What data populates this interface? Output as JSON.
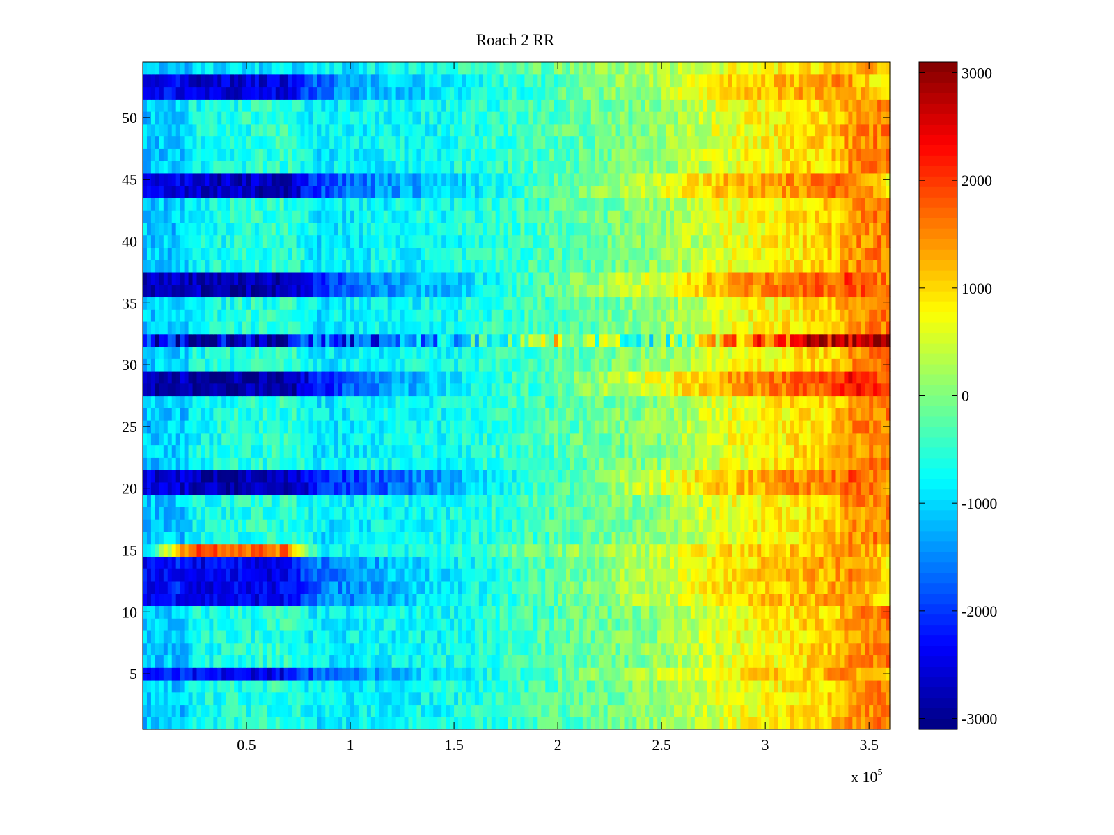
{
  "chart_data": {
    "type": "heatmap",
    "title": "Roach 2 RR",
    "xlabel": "",
    "ylabel": "",
    "x_exponent_label": "x 10",
    "x_exponent_power": "5",
    "xlim": [
      0,
      360000
    ],
    "ylim": [
      0.5,
      54.5
    ],
    "x_ticks": [
      {
        "value": 50000,
        "label": "0.5"
      },
      {
        "value": 100000,
        "label": "1"
      },
      {
        "value": 150000,
        "label": "1.5"
      },
      {
        "value": 200000,
        "label": "2"
      },
      {
        "value": 250000,
        "label": "2.5"
      },
      {
        "value": 300000,
        "label": "3"
      },
      {
        "value": 350000,
        "label": "3.5"
      }
    ],
    "y_ticks": [
      {
        "value": 5,
        "label": "5"
      },
      {
        "value": 10,
        "label": "10"
      },
      {
        "value": 15,
        "label": "15"
      },
      {
        "value": 20,
        "label": "20"
      },
      {
        "value": 25,
        "label": "25"
      },
      {
        "value": 30,
        "label": "30"
      },
      {
        "value": 35,
        "label": "35"
      },
      {
        "value": 40,
        "label": "40"
      },
      {
        "value": 45,
        "label": "45"
      },
      {
        "value": 50,
        "label": "50"
      }
    ],
    "colorbar": {
      "colormap": "jet",
      "clim": [
        -3100,
        3100
      ],
      "ticks": [
        {
          "value": 3000,
          "label": "3000"
        },
        {
          "value": 2000,
          "label": "2000"
        },
        {
          "value": 1000,
          "label": "1000"
        },
        {
          "value": 0,
          "label": "0"
        },
        {
          "value": -1000,
          "label": "-1000"
        },
        {
          "value": -2000,
          "label": "-2000"
        },
        {
          "value": -3000,
          "label": "-3000"
        }
      ]
    },
    "grid": false,
    "rows": 54,
    "x_breakpoints": [
      0,
      20000,
      25000,
      70000,
      85000,
      110000,
      145000,
      200000,
      250000,
      280000,
      335000,
      340000,
      360000
    ],
    "row_profiles": [
      {
        "rows": [
          1,
          2,
          3,
          4,
          6,
          7,
          8,
          9,
          10,
          16,
          17,
          18,
          19,
          22,
          23,
          24,
          25,
          26,
          30,
          33,
          34,
          38,
          39,
          40,
          41,
          42,
          46,
          47,
          48,
          49,
          50,
          51
        ],
        "values": [
          -1100,
          -1100,
          -700,
          -500,
          -900,
          -800,
          -700,
          -300,
          100,
          600,
          1100,
          1400,
          1600
        ]
      },
      {
        "rows": [
          5,
          11,
          12,
          13,
          14
        ],
        "values": [
          -2300,
          -2200,
          -2400,
          -2400,
          -1600,
          -1300,
          -900,
          -200,
          400,
          900,
          1300,
          1500,
          900
        ]
      },
      {
        "rows": [
          20,
          21
        ],
        "values": [
          -2600,
          -2600,
          -2800,
          -2800,
          -2200,
          -1800,
          -1300,
          -300,
          500,
          1100,
          1600,
          1800,
          1400
        ]
      },
      {
        "rows": [
          28,
          29
        ],
        "values": [
          -2800,
          -2800,
          -2900,
          -2900,
          -2200,
          -1500,
          -1000,
          -200,
          700,
          1300,
          1900,
          2300,
          1800
        ]
      },
      {
        "rows": [
          36,
          37
        ],
        "values": [
          -2700,
          -2700,
          -2800,
          -2800,
          -2000,
          -1500,
          -1100,
          -200,
          600,
          1300,
          1800,
          2000,
          1500
        ]
      },
      {
        "rows": [
          44,
          45
        ],
        "values": [
          -2500,
          -2500,
          -2700,
          -2700,
          -1900,
          -1500,
          -1100,
          -200,
          500,
          1200,
          1600,
          1700,
          900
        ]
      },
      {
        "rows": [
          52,
          53
        ],
        "values": [
          -2400,
          -2300,
          -2600,
          -2500,
          -1700,
          -1200,
          -900,
          -300,
          300,
          900,
          1400,
          1500,
          600
        ]
      },
      {
        "rows": [
          54
        ],
        "values": [
          -1100,
          -1100,
          -1000,
          -900,
          -900,
          -800,
          -600,
          -100,
          300,
          600,
          1000,
          1300,
          1300
        ]
      },
      {
        "rows": [
          32
        ],
        "values": [
          -2000,
          -2600,
          -2600,
          -2600,
          -1900,
          -2000,
          -1200,
          600,
          -500,
          1200,
          2800,
          2900,
          3000
        ]
      },
      {
        "rows": [
          15
        ],
        "values": [
          -1000,
          1400,
          2000,
          1600,
          -700,
          -700,
          -600,
          0,
          400,
          900,
          1300,
          1500,
          1000
        ]
      }
    ]
  }
}
